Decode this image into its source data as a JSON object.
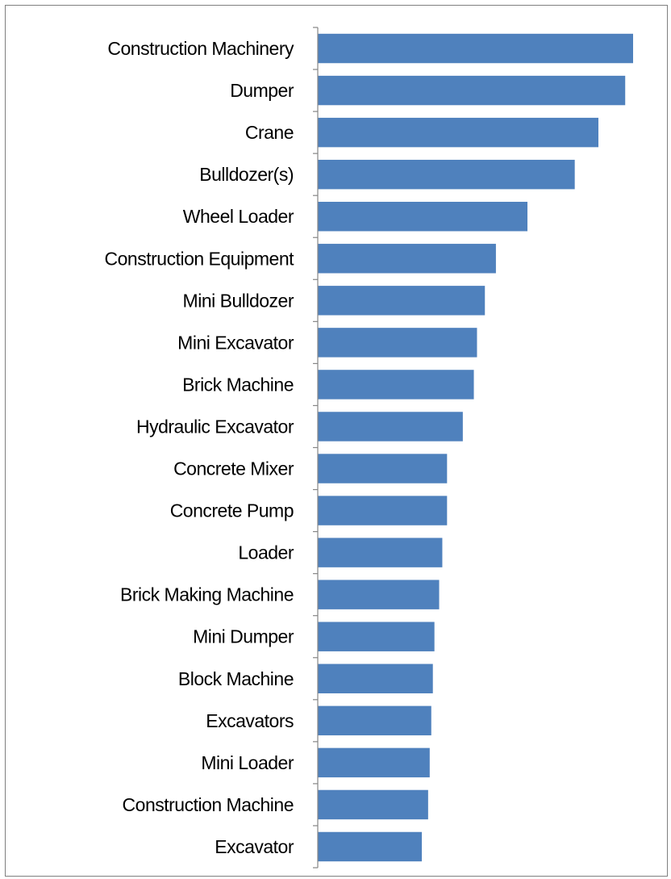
{
  "chart_data": {
    "type": "bar",
    "orientation": "horizontal",
    "title": "",
    "xlabel": "",
    "ylabel": "",
    "categories": [
      "Construction Machinery",
      "Dumper",
      "Crane",
      "Bulldozer(s)",
      "Wheel Loader",
      "Construction Equipment",
      "Mini Bulldozer",
      "Mini Excavator",
      "Brick Machine",
      "Hydraulic Excavator",
      "Concrete Mixer",
      "Concrete Pump",
      "Loader",
      "Brick Making Machine",
      "Mini Dumper",
      "Block Machine",
      "Excavators",
      "Mini Loader",
      "Construction Machine",
      "Excavator"
    ],
    "values": [
      100,
      97.5,
      89,
      81.5,
      66.5,
      56.5,
      53,
      50.5,
      49.5,
      46,
      41,
      41,
      39.5,
      38.5,
      37,
      36.5,
      36,
      35.5,
      35,
      33
    ],
    "xlim": [
      0,
      100
    ],
    "grid": false,
    "legend": "none",
    "bar_color": "#4f81bd",
    "axis_color": "#868686"
  }
}
